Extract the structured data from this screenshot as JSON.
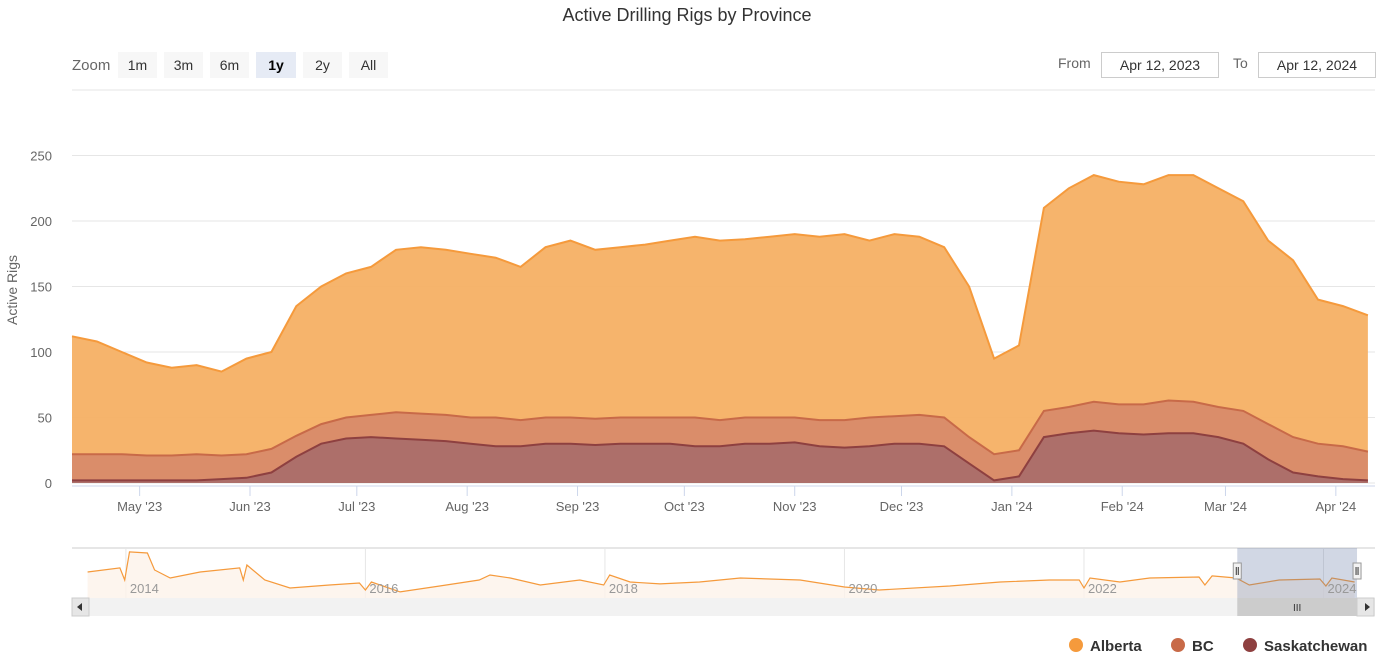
{
  "chart_data": {
    "type": "area",
    "stacking": "normal",
    "title": "Active Drilling Rigs by Province",
    "ylabel": "Active Rigs",
    "xlabel": "",
    "ylim": [
      0,
      300
    ],
    "y_ticks": [
      "0",
      "50",
      "100",
      "150",
      "200",
      "250"
    ],
    "y_tick_values": [
      0,
      50,
      100,
      150,
      200,
      250
    ],
    "x_start": "2023-04-12",
    "x_end": "2024-04-12",
    "x_interval_days": 7,
    "x_ticks": [
      {
        "label": "May '23",
        "day": 19
      },
      {
        "label": "Jun '23",
        "day": 50
      },
      {
        "label": "Jul '23",
        "day": 80
      },
      {
        "label": "Aug '23",
        "day": 111
      },
      {
        "label": "Sep '23",
        "day": 142
      },
      {
        "label": "Oct '23",
        "day": 172
      },
      {
        "label": "Nov '23",
        "day": 203
      },
      {
        "label": "Dec '23",
        "day": 233
      },
      {
        "label": "Jan '24",
        "day": 264
      },
      {
        "label": "Feb '24",
        "day": 295
      },
      {
        "label": "Mar '24",
        "day": 324
      },
      {
        "label": "Apr '24",
        "day": 355
      }
    ],
    "grid": true,
    "legend_position": "bottom-right",
    "series": [
      {
        "name": "Alberta",
        "color": "#f59a3c",
        "fill": "#f5b064",
        "values": [
          90,
          86,
          78,
          71,
          67,
          68,
          64,
          73,
          74,
          99,
          105,
          110,
          113,
          124,
          127,
          126,
          125,
          122,
          117,
          130,
          135,
          129,
          130,
          132,
          135,
          138,
          137,
          136,
          138,
          140,
          140,
          142,
          135,
          139,
          136,
          130,
          115,
          73,
          80,
          155,
          167,
          173,
          170,
          168,
          172,
          173,
          167,
          160,
          140,
          135,
          110,
          107,
          104
        ]
      },
      {
        "name": "BC",
        "color": "#c86a48",
        "fill": "#d88b6a",
        "values": [
          20,
          20,
          20,
          19,
          19,
          20,
          18,
          18,
          18,
          16,
          15,
          16,
          17,
          20,
          20,
          20,
          20,
          22,
          20,
          20,
          20,
          20,
          20,
          20,
          20,
          22,
          20,
          20,
          20,
          19,
          20,
          21,
          22,
          21,
          22,
          22,
          20,
          20,
          20,
          20,
          20,
          22,
          22,
          23,
          25,
          24,
          23,
          25,
          27,
          27,
          25,
          25,
          22
        ]
      },
      {
        "name": "Saskatchewan",
        "color": "#8e4040",
        "fill": "#ab6e6a",
        "values": [
          2,
          2,
          2,
          2,
          2,
          2,
          3,
          4,
          8,
          20,
          30,
          34,
          35,
          34,
          33,
          32,
          30,
          28,
          28,
          30,
          30,
          29,
          30,
          30,
          30,
          28,
          28,
          30,
          30,
          31,
          28,
          27,
          28,
          30,
          30,
          28,
          15,
          2,
          5,
          35,
          38,
          40,
          38,
          37,
          38,
          38,
          35,
          30,
          18,
          8,
          5,
          3,
          2
        ]
      }
    ],
    "navigator": {
      "x_ticks": [
        "2014",
        "2016",
        "2018",
        "2020",
        "2022",
        "2024"
      ],
      "x_tick_years": [
        2014,
        2016,
        2018,
        2020,
        2022,
        2024
      ],
      "year_range": [
        2013.55,
        2024.43
      ],
      "selected_range_years": [
        2023.28,
        2024.28
      ],
      "years": [
        2013.68,
        2013.95,
        2013.99,
        2014.03,
        2014.18,
        2014.24,
        2014.37,
        2014.62,
        2014.95,
        2014.98,
        2015.01,
        2015.16,
        2015.37,
        2015.7,
        2015.95,
        2016.0,
        2016.05,
        2016.29,
        2016.62,
        2016.95,
        2017.04,
        2017.21,
        2017.46,
        2017.79,
        2017.99,
        2018.04,
        2018.21,
        2018.46,
        2018.79,
        2019.13,
        2019.63,
        2020.0,
        2020.29,
        2020.88,
        2021.3,
        2021.71,
        2021.96,
        2022.0,
        2022.05,
        2022.3,
        2022.55,
        2022.96,
        2023.01,
        2023.07,
        2023.27,
        2023.38,
        2023.63,
        2023.97,
        2024.02,
        2024.07,
        2024.26
      ],
      "values": [
        225,
        263,
        150,
        413,
        403,
        244,
        169,
        225,
        263,
        150,
        291,
        150,
        75,
        103,
        122,
        56,
        131,
        38,
        94,
        150,
        197,
        169,
        103,
        150,
        103,
        197,
        131,
        113,
        131,
        169,
        150,
        84,
        56,
        94,
        131,
        150,
        150,
        75,
        169,
        131,
        169,
        178,
        103,
        188,
        169,
        103,
        150,
        159,
        94,
        169,
        131
      ]
    }
  },
  "range_selector": {
    "zoom_label": "Zoom",
    "buttons": [
      "1m",
      "3m",
      "6m",
      "1y",
      "2y",
      "All"
    ],
    "selected": "1y",
    "from_label": "From",
    "from_value": "Apr 12, 2023",
    "to_label": "To",
    "to_value": "Apr 12, 2024"
  },
  "scrollbar": {
    "grip": "III"
  }
}
